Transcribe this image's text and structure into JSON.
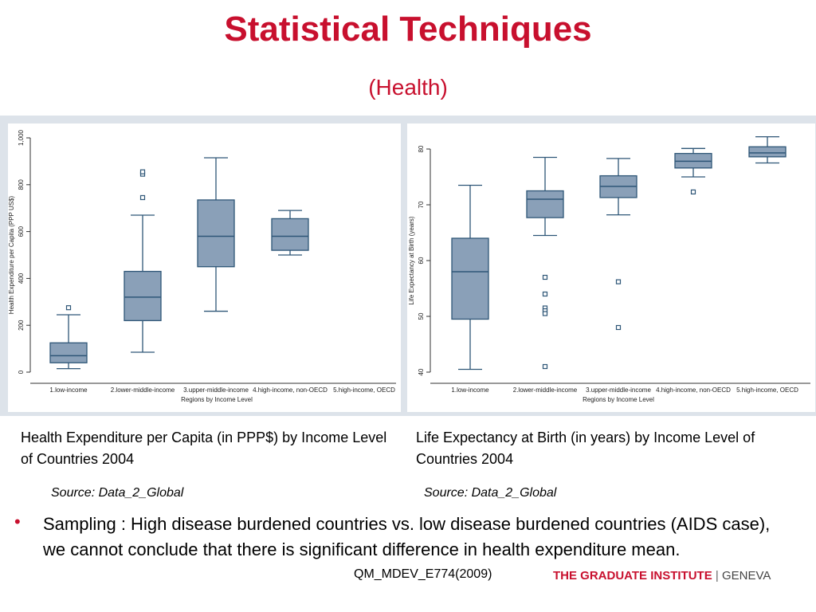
{
  "slide": {
    "title": "Statistical Techniques",
    "subtitle": "(Health)",
    "caption_left": "Health Expenditure per Capita (in PPP$) by Income Level of Countries 2004",
    "caption_right": "Life Expectancy at Birth (in years) by Income Level of Countries 2004",
    "source_left": "Source: Data_2_Global",
    "source_right": "Source: Data_2_Global",
    "bullet_text": "Sampling : High disease burdened countries vs. low disease burdened countries (AIDS case), we cannot conclude that there is significant difference in health expenditure mean.",
    "footer_code": "QM_MDEV_E774(2009)",
    "footer_logo_main": "THE GRADUATE INSTITUTE",
    "footer_logo_sep": "|",
    "footer_logo_sub": "GENEVA"
  },
  "colors": {
    "title": "#c8102e",
    "box_fill": "#8aa0b8",
    "box_stroke": "#2e5677",
    "panel_bg": "#dde3ea"
  },
  "chart_data": [
    {
      "type": "box",
      "title": "",
      "xlabel": "Regions by Income Level",
      "ylabel": "Health Expenditure per Capita (PPP US$)",
      "ylim": [
        0,
        1000
      ],
      "yticks": [
        0,
        200,
        400,
        600,
        800,
        1000
      ],
      "ytick_labels": [
        "0",
        "200",
        "400",
        "600",
        "800",
        "1,000"
      ],
      "grid": false,
      "categories": [
        "1.low-income",
        "2.lower-middle-income",
        "3.upper-middle-income",
        "4.high-income, non-OECD",
        "5.high-income, OECD"
      ],
      "boxes": [
        {
          "whisker_low": 15,
          "q1": 40,
          "median": 70,
          "q3": 125,
          "whisker_high": 245,
          "outliers": [
            275
          ]
        },
        {
          "whisker_low": 85,
          "q1": 220,
          "median": 320,
          "q3": 430,
          "whisker_high": 670,
          "outliers": [
            745,
            845,
            855
          ]
        },
        {
          "whisker_low": 260,
          "q1": 450,
          "median": 580,
          "q3": 735,
          "whisker_high": 915,
          "outliers": []
        },
        {
          "whisker_low": 500,
          "q1": 520,
          "median": 580,
          "q3": 655,
          "whisker_high": 690,
          "outliers": []
        },
        null
      ]
    },
    {
      "type": "box",
      "title": "",
      "xlabel": "Regions by Income Level",
      "ylabel": "Life Expectancy at Birth (years)",
      "ylim": [
        40,
        80
      ],
      "yticks": [
        40,
        50,
        60,
        70,
        80
      ],
      "ytick_labels": [
        "40",
        "50",
        "60",
        "70",
        "80"
      ],
      "grid": false,
      "categories": [
        "1.low-income",
        "2.lower-middle-income",
        "3.upper-middle-income",
        "4.high-income, non-OECD",
        "5.high-income, OECD"
      ],
      "boxes": [
        {
          "whisker_low": 40.5,
          "q1": 49.5,
          "median": 58,
          "q3": 64,
          "whisker_high": 73.5,
          "outliers": []
        },
        {
          "whisker_low": 64.5,
          "q1": 67.7,
          "median": 71,
          "q3": 72.5,
          "whisker_high": 78.5,
          "outliers": [
            57,
            54,
            51.5,
            51,
            50.5,
            41
          ]
        },
        {
          "whisker_low": 68.2,
          "q1": 71.3,
          "median": 73.3,
          "q3": 75.2,
          "whisker_high": 78.3,
          "outliers": [
            56.2,
            48
          ]
        },
        {
          "whisker_low": 75,
          "q1": 76.6,
          "median": 77.8,
          "q3": 79.2,
          "whisker_high": 80.1,
          "outliers": [
            72.3
          ]
        },
        {
          "whisker_low": 77.5,
          "q1": 78.6,
          "median": 79.3,
          "q3": 80.4,
          "whisker_high": 82.2,
          "outliers": []
        }
      ]
    }
  ]
}
